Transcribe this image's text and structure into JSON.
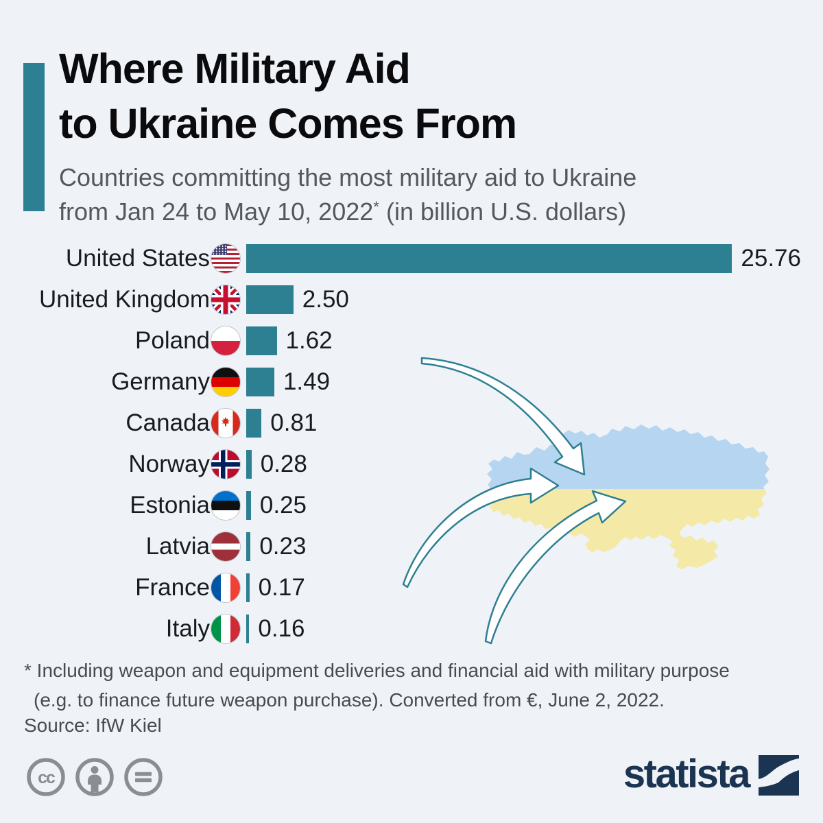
{
  "header": {
    "title_lines": [
      "Where Military Aid",
      "to Ukraine Comes From"
    ],
    "subtitle_line1": "Countries committing the most military aid to Ukraine",
    "subtitle_line2_pre": "from Jan 24 to May 10, 2022",
    "subtitle_asterisk": "*",
    "subtitle_line2_post": " (in billion U.S. dollars)"
  },
  "chart_data": {
    "type": "bar",
    "orientation": "horizontal",
    "title": "Where Military Aid to Ukraine Comes From",
    "xlabel": "billion U.S. dollars",
    "ylabel": "",
    "xlim": [
      0,
      26.5
    ],
    "grid": false,
    "bar_color": "#2d7f92",
    "categories": [
      "United States",
      "United Kingdom",
      "Poland",
      "Germany",
      "Canada",
      "Norway",
      "Estonia",
      "Latvia",
      "France",
      "Italy"
    ],
    "values": [
      25.76,
      2.5,
      1.62,
      1.49,
      0.81,
      0.28,
      0.25,
      0.23,
      0.17,
      0.16
    ],
    "value_labels": [
      "25.76",
      "2.50",
      "1.62",
      "1.49",
      "0.81",
      "0.28",
      "0.25",
      "0.23",
      "0.17",
      "0.16"
    ],
    "flags": [
      "us",
      "gb",
      "pl",
      "de",
      "ca",
      "no",
      "ee",
      "lv",
      "fr",
      "it"
    ]
  },
  "footer": {
    "footnote_line1": "* Including weapon and equipment deliveries and financial aid with military purpose",
    "footnote_line2": "(e.g. to finance future weapon purchase). Converted from €, June 2, 2022.",
    "source": "Source: IfW Kiel"
  },
  "branding": {
    "logo_text": "statista",
    "license_icons": [
      "cc-icon",
      "attribution-icon",
      "no-derivatives-icon"
    ]
  },
  "colors": {
    "background": "#eff3f8",
    "accent_teal": "#2d7f92",
    "map_blue": "#b5d5f1",
    "map_yellow": "#f4e9a6",
    "logo_navy": "#1b3452",
    "license_gray": "#8a8e92"
  }
}
